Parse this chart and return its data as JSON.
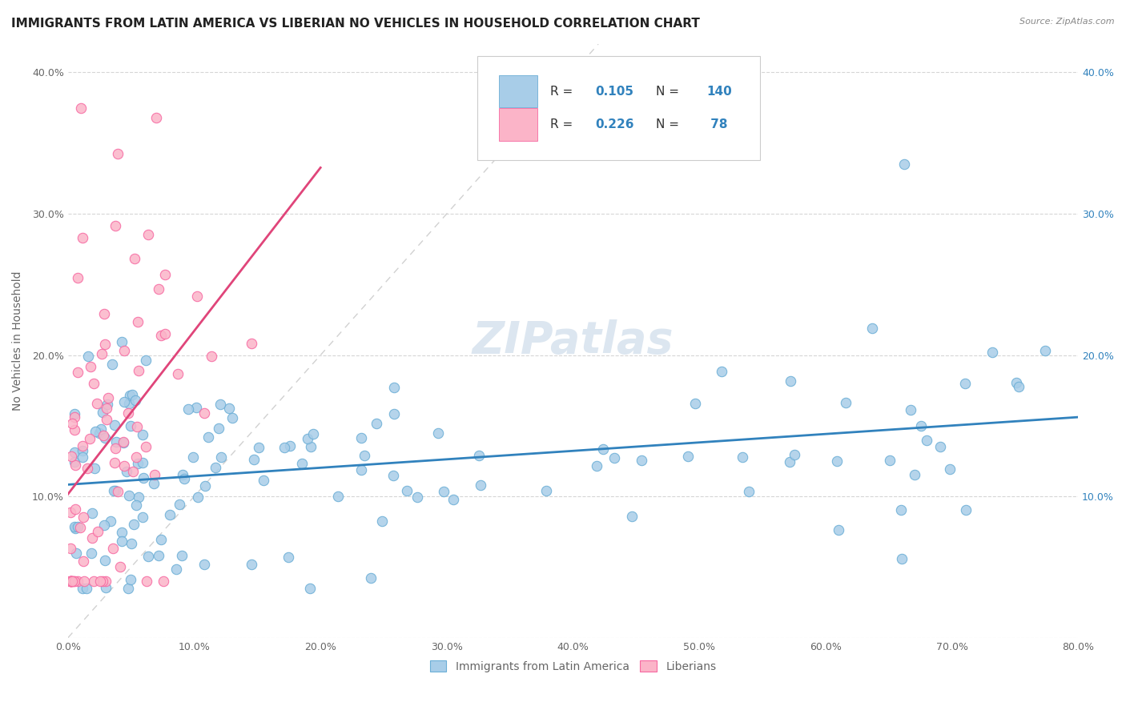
{
  "title": "IMMIGRANTS FROM LATIN AMERICA VS LIBERIAN NO VEHICLES IN HOUSEHOLD CORRELATION CHART",
  "source": "Source: ZipAtlas.com",
  "ylabel_text": "No Vehicles in Household",
  "x_min": 0.0,
  "x_max": 0.8,
  "y_min": 0.0,
  "y_max": 0.42,
  "x_ticks": [
    0.0,
    0.1,
    0.2,
    0.3,
    0.4,
    0.5,
    0.6,
    0.7,
    0.8
  ],
  "x_tick_labels": [
    "0.0%",
    "10.0%",
    "20.0%",
    "30.0%",
    "40.0%",
    "50.0%",
    "60.0%",
    "70.0%",
    "80.0%"
  ],
  "y_ticks": [
    0.0,
    0.1,
    0.2,
    0.3,
    0.4
  ],
  "y_tick_labels_left": [
    "",
    "10.0%",
    "20.0%",
    "30.0%",
    "40.0%"
  ],
  "y_tick_labels_right": [
    "",
    "10.0%",
    "20.0%",
    "30.0%",
    "40.0%"
  ],
  "blue_color": "#a8cde8",
  "blue_edge_color": "#6baed6",
  "pink_color": "#fbb4c8",
  "pink_edge_color": "#f768a1",
  "blue_line_color": "#3182bd",
  "pink_line_color": "#e0457a",
  "diag_color": "#cccccc",
  "watermark": "ZIPatlas",
  "background_color": "#ffffff",
  "grid_color": "#cccccc",
  "title_fontsize": 11,
  "axis_label_fontsize": 10,
  "tick_fontsize": 9,
  "legend_fontsize": 11,
  "watermark_fontsize": 40,
  "watermark_color": "#dce6f0",
  "right_y_color": "#3182bd",
  "legend_text_color": "#333333",
  "axis_color": "#666666",
  "source_color": "#888888"
}
